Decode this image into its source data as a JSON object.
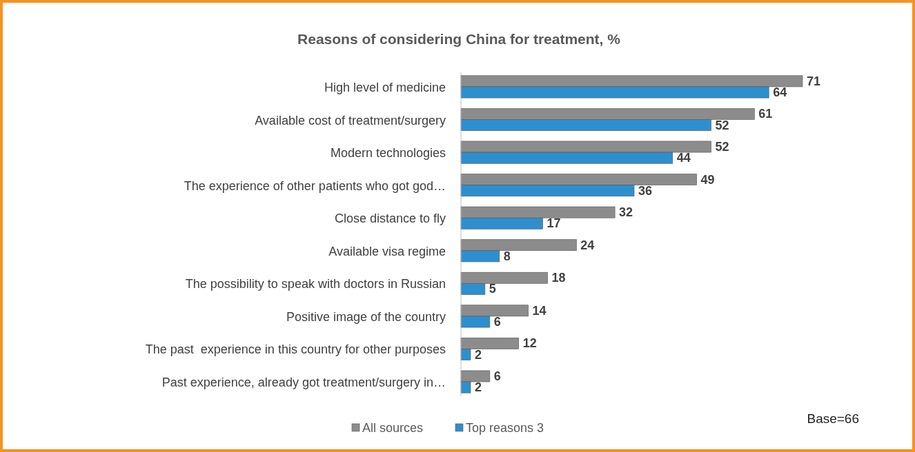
{
  "chart_data": {
    "type": "bar",
    "orientation": "horizontal",
    "title": "Reasons of considering China for treatment, %",
    "categories": [
      "High level of medicine",
      "Available cost of treatment/surgery",
      "Modern technologies",
      "The experience of other patients who got god…",
      "Close distance to fly",
      "Available visa regime",
      "The possibility to speak with doctors in Russian",
      "Positive image of the country",
      "The past  experience in this country for other purposes",
      "Past experience, already got treatment/surgery in…"
    ],
    "series": [
      {
        "name": "All sources",
        "color": "#8c8c8c",
        "values": [
          71,
          61,
          52,
          49,
          32,
          24,
          18,
          14,
          12,
          6
        ]
      },
      {
        "name": "Top reasons 3",
        "color": "#2e8fcf",
        "values": [
          64,
          52,
          44,
          36,
          17,
          8,
          5,
          6,
          2,
          2
        ]
      }
    ],
    "data_labels": true,
    "legend": "bottom",
    "annotations": [
      "Base=66"
    ]
  }
}
